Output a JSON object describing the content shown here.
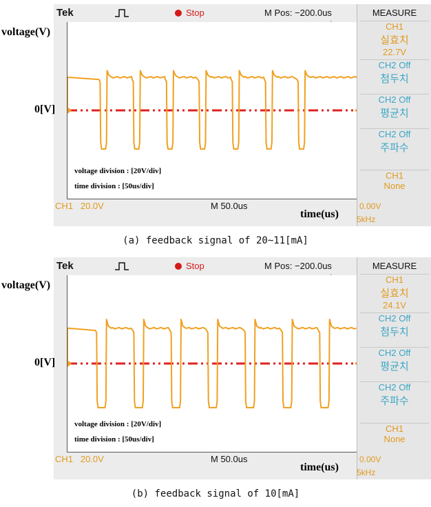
{
  "panels": [
    {
      "header": {
        "brand": "Tek",
        "status": "Stop",
        "mpos": "M Pos: −200.0us"
      },
      "measure": {
        "title": "MEASURE",
        "items": [
          {
            "ch": "CH1",
            "name": "실효치",
            "value": "22.7V"
          },
          {
            "ch": "CH2 Off",
            "name": "첨두치"
          },
          {
            "ch": "CH2 Off",
            "name": "평균치"
          },
          {
            "ch": "CH2 Off",
            "name": "주파수"
          },
          {
            "ch": "CH1",
            "name": "None"
          }
        ]
      },
      "ylabel": "voltage(V)",
      "zero_label": "0[V]",
      "info": [
        "voltage division : [20V/div]",
        "time division : [50us/div]"
      ],
      "footer": {
        "ch1": "CH1   20.0V",
        "mscale": "M 50.0us",
        "time_label": "time(us)",
        "trigger_level": "0.00V",
        "freq": "5kHz"
      },
      "caption": "(a) feedback signal of 20~11[mA]"
    },
    {
      "header": {
        "brand": "Tek",
        "status": "Stop",
        "mpos": "M Pos: −200.0us"
      },
      "measure": {
        "title": "MEASURE",
        "items": [
          {
            "ch": "CH1",
            "name": "실효치",
            "value": "24.1V"
          },
          {
            "ch": "CH2 Off",
            "name": "첨두치"
          },
          {
            "ch": "CH2 Off",
            "name": "평균치"
          },
          {
            "ch": "CH2 Off",
            "name": "주파수"
          },
          {
            "ch": "CH1",
            "name": "None"
          }
        ]
      },
      "ylabel": "voltage(V)",
      "zero_label": "0[V]",
      "info": [
        "voltage division : [20V/div]",
        "time division : [50us/div]"
      ],
      "footer": {
        "ch1": "CH1   20.0V",
        "mscale": "M 50.0us",
        "time_label": "time(us)",
        "trigger_level": "0.00V",
        "freq": "5kHz"
      },
      "caption": "(b) feedback signal of 10[mA]"
    }
  ],
  "colors": {
    "trace": "#f0a020",
    "zero_line": "#e02020",
    "measure_text": "#3aa6c6",
    "stop": "#d41a1a"
  },
  "chart_data": [
    {
      "type": "line",
      "title": "(a) feedback signal of 20~11[mA]",
      "xlabel": "time(us)",
      "ylabel": "voltage(V)",
      "ylim": [
        -80,
        80
      ],
      "xlim": [
        0,
        500
      ],
      "series": [
        {
          "period_us": 57,
          "pulse_starts_us": [
            56,
            113,
            170,
            226,
            283,
            340,
            396
          ],
          "pulse_width_us": 12,
          "high_level_V": 30,
          "low_level_V": -35,
          "overshoot_V": 36
        }
      ]
    },
    {
      "type": "line",
      "title": "(b) feedback signal of 10[mA]",
      "xlabel": "time(us)",
      "ylabel": "voltage(V)",
      "ylim": [
        -80,
        80
      ],
      "xlim": [
        0,
        500
      ],
      "series": [
        {
          "period_us": 65,
          "pulse_starts_us": [
            50,
            114,
            178,
            241,
            305,
            369,
            433
          ],
          "pulse_width_us": 17,
          "high_level_V": 32,
          "low_level_V": -40,
          "overshoot_V": 40
        }
      ]
    }
  ]
}
